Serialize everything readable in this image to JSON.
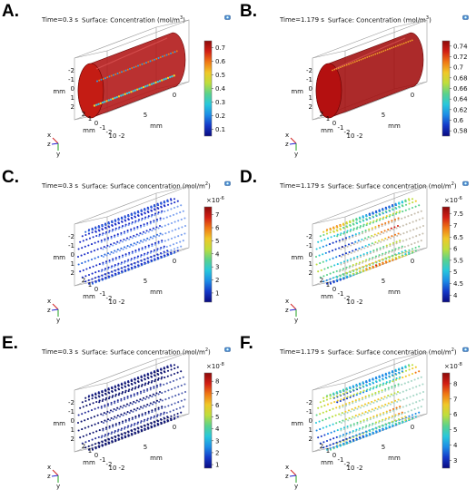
{
  "panels": [
    {
      "letter": "A.",
      "time": "Time=0.3 s",
      "surface": "Surface: Concentration (mol/m",
      "unit_power": "3",
      "surface_close": ")",
      "view": "solid",
      "fill": "red",
      "colorbar": {
        "ticks": [
          "0.7",
          "0.6",
          "0.5",
          "0.4",
          "0.3",
          "0.2",
          "0.1"
        ],
        "min": 0.05,
        "max": 0.75,
        "exponent": ""
      },
      "axes": {
        "mm_left": [
          "-2",
          "-1",
          "0",
          "1",
          "2"
        ],
        "mm_bottom": [
          "2",
          "1",
          "0",
          "-1",
          "-2"
        ],
        "right_nums": [
          "0",
          "5",
          "10"
        ],
        "mm_labels": [
          "mm",
          "mm",
          "mm"
        ],
        "bottom_end": "-2"
      },
      "triad": {
        "x": "x",
        "y": "y",
        "z": "z"
      }
    },
    {
      "letter": "B.",
      "time": "Time=1.179 s",
      "surface": "Surface: Concentration (mol/m",
      "unit_power": "3",
      "surface_close": ")",
      "view": "solid",
      "fill": "red2",
      "colorbar": {
        "ticks": [
          "0.74",
          "0.72",
          "0.7",
          "0.68",
          "0.66",
          "0.64",
          "0.62",
          "0.6",
          "0.58"
        ],
        "min": 0.57,
        "max": 0.75,
        "exponent": ""
      },
      "axes": {
        "mm_left": [
          "-2",
          "-1",
          "0",
          "1",
          "2"
        ],
        "mm_bottom": [
          "2",
          "1",
          "0",
          "-1",
          "-2"
        ],
        "right_nums": [
          "0",
          "5",
          "10"
        ],
        "mm_labels": [
          "mm",
          "mm",
          "mm"
        ],
        "bottom_end": "-2"
      },
      "triad": {
        "x": "x",
        "y": "y",
        "z": "z"
      }
    },
    {
      "letter": "C.",
      "time": "Time=0.3 s",
      "surface": "Surface: Surface concentration (mol/m",
      "unit_power": "2",
      "surface_close": ")",
      "view": "dots",
      "fill": "blue",
      "colorbar": {
        "ticks": [
          "7",
          "6",
          "5",
          "4",
          "3",
          "2",
          "1"
        ],
        "min": 0.3,
        "max": 7.6,
        "exponent": "×10",
        "exponent_power": "-6"
      },
      "axes": {
        "mm_left": [
          "-2",
          "-1",
          "0",
          "1",
          "2"
        ],
        "mm_bottom": [
          "2",
          "1",
          "0",
          "-1",
          "-2"
        ],
        "right_nums": [
          "0",
          "5",
          "10"
        ],
        "mm_labels": [
          "mm",
          "mm",
          "mm"
        ],
        "bottom_end": "-2"
      },
      "triad": {
        "x": "x",
        "y": "y",
        "z": "z"
      }
    },
    {
      "letter": "D.",
      "time": "Time=1.179 s",
      "surface": "Surface: Surface concentration (mol/m",
      "unit_power": "2",
      "surface_close": ")",
      "view": "dots",
      "fill": "mixed",
      "colorbar": {
        "ticks": [
          "7.5",
          "7",
          "6.5",
          "6",
          "5.5",
          "5",
          "4.5",
          "4"
        ],
        "min": 3.7,
        "max": 7.8,
        "exponent": "×10",
        "exponent_power": "-6"
      },
      "axes": {
        "mm_left": [
          "-2",
          "-1",
          "0",
          "1",
          "2"
        ],
        "mm_bottom": [
          "2",
          "1",
          "0",
          "-1",
          "-2"
        ],
        "right_nums": [
          "0",
          "5",
          "10"
        ],
        "mm_labels": [
          "mm",
          "mm",
          "mm"
        ],
        "bottom_end": "-2"
      },
      "triad": {
        "x": "x",
        "y": "y",
        "z": "z"
      }
    },
    {
      "letter": "E.",
      "time": "Time=0.3 s",
      "surface": "Surface: Surface concentration (mol/m",
      "unit_power": "2",
      "surface_close": ")",
      "view": "dots",
      "fill": "navy",
      "colorbar": {
        "ticks": [
          "8",
          "7",
          "6",
          "5",
          "4",
          "3",
          "2",
          "1"
        ],
        "min": 0.7,
        "max": 8.7,
        "exponent": "×10",
        "exponent_power": "-8"
      },
      "axes": {
        "mm_left": [
          "-2",
          "-1",
          "0",
          "1",
          "2"
        ],
        "mm_bottom": [
          "2",
          "1",
          "0",
          "-1",
          "-2"
        ],
        "right_nums": [
          "0",
          "5",
          "10"
        ],
        "mm_labels": [
          "mm",
          "mm",
          "mm"
        ],
        "bottom_end": "-2"
      },
      "triad": {
        "x": "x",
        "y": "y",
        "z": "z"
      }
    },
    {
      "letter": "F.",
      "time": "Time=1.179 s",
      "surface": "Surface: Surface concentration (mol/m",
      "unit_power": "2",
      "surface_close": ")",
      "view": "dots",
      "fill": "cyan",
      "colorbar": {
        "ticks": [
          "8",
          "7",
          "6",
          "5",
          "4",
          "3"
        ],
        "min": 2.5,
        "max": 8.7,
        "exponent": "×10",
        "exponent_power": "-8"
      },
      "axes": {
        "mm_left": [
          "-2",
          "-1",
          "0",
          "1",
          "2"
        ],
        "mm_bottom": [
          "2",
          "1",
          "0",
          "-1",
          "-2"
        ],
        "right_nums": [
          "0",
          "5",
          "10"
        ],
        "mm_labels": [
          "mm",
          "mm",
          "mm"
        ],
        "bottom_end": "-2"
      },
      "triad": {
        "x": "x",
        "y": "y",
        "z": "z"
      }
    }
  ],
  "colormap": [
    "#0a0a80",
    "#1438c8",
    "#1c8ce6",
    "#28c8dc",
    "#5ad28c",
    "#bede3c",
    "#f0c828",
    "#f07814",
    "#d21e14",
    "#8c0a0a"
  ],
  "chart_data": [
    {
      "type": "heatmap",
      "panel": "A",
      "time_s": 0.3,
      "quantity": "Concentration",
      "unit": "mol/m^3",
      "colorbar_range": [
        0.05,
        0.75
      ],
      "colorbar_ticks": [
        0.7,
        0.6,
        0.5,
        0.4,
        0.3,
        0.2,
        0.1
      ],
      "dominant_color": "red (~0.7)"
    },
    {
      "type": "heatmap",
      "panel": "B",
      "time_s": 1.179,
      "quantity": "Concentration",
      "unit": "mol/m^3",
      "colorbar_range": [
        0.57,
        0.75
      ],
      "colorbar_ticks": [
        0.74,
        0.72,
        0.7,
        0.68,
        0.66,
        0.64,
        0.62,
        0.6,
        0.58
      ],
      "dominant_color": "dark red (~0.74)"
    },
    {
      "type": "heatmap",
      "panel": "C",
      "time_s": 0.3,
      "quantity": "Surface concentration",
      "unit": "mol/m^2",
      "scale": "1e-6",
      "colorbar_ticks": [
        7,
        6,
        5,
        4,
        3,
        2,
        1
      ],
      "dominant_color": "blue (~1)"
    },
    {
      "type": "heatmap",
      "panel": "D",
      "time_s": 1.179,
      "quantity": "Surface concentration",
      "unit": "mol/m^2",
      "scale": "1e-6",
      "colorbar_ticks": [
        7.5,
        7,
        6.5,
        6,
        5.5,
        5,
        4.5,
        4
      ],
      "dominant_color": "mixed orange/green/blue"
    },
    {
      "type": "heatmap",
      "panel": "E",
      "time_s": 0.3,
      "quantity": "Surface concentration",
      "unit": "mol/m^2",
      "scale": "1e-8",
      "colorbar_ticks": [
        8,
        7,
        6,
        5,
        4,
        3,
        2,
        1
      ],
      "dominant_color": "dark navy (~1)"
    },
    {
      "type": "heatmap",
      "panel": "F",
      "time_s": 1.179,
      "quantity": "Surface concentration",
      "unit": "mol/m^2",
      "scale": "1e-8",
      "colorbar_ticks": [
        8,
        7,
        6,
        5,
        4,
        3
      ],
      "dominant_color": "cyan/green (~4-5)"
    }
  ]
}
